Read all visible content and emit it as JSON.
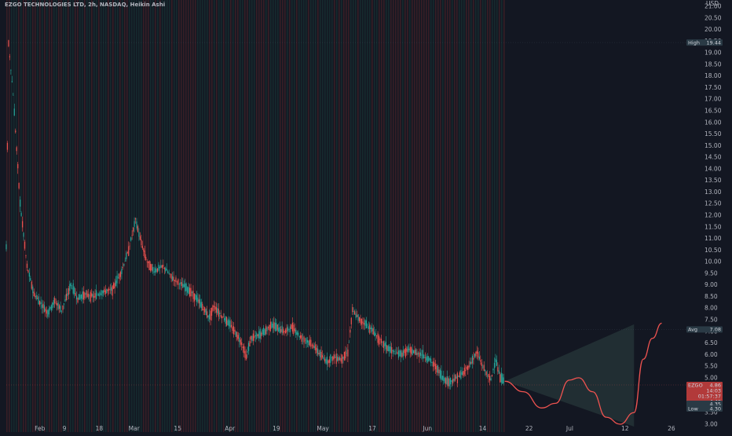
{
  "header": {
    "title": "EZGO TECHNOLOGIES LTD, 2h, NASDAQ, Heikin Ashi"
  },
  "colors": {
    "background": "#131722",
    "up": "#26a69a",
    "down": "#ef5350",
    "stripe_red": "#7a2a2a",
    "stripe_green": "#1e4d46",
    "axis_text": "#b2b5be",
    "projection": "#ef5350",
    "triangle_fill": "#253336"
  },
  "chart_data": {
    "type": "candlestick",
    "title": "EZGO TECHNOLOGIES LTD, 2h, NASDAQ, Heikin Ashi",
    "currency": "USD",
    "y_axis": {
      "ylim": [
        3.0,
        21.0
      ],
      "ticks": [
        "21.00",
        "20.50",
        "20.00",
        "19.50",
        "19.00",
        "18.50",
        "18.00",
        "17.50",
        "17.00",
        "16.50",
        "16.00",
        "15.50",
        "15.00",
        "14.50",
        "14.00",
        "13.50",
        "13.00",
        "12.50",
        "12.00",
        "11.50",
        "11.00",
        "10.50",
        "10.00",
        "9.50",
        "9.00",
        "8.50",
        "8.00",
        "7.50",
        "7.00",
        "6.50",
        "6.00",
        "5.50",
        "5.00",
        "4.50",
        "4.00",
        "3.50",
        "3.00"
      ]
    },
    "x_axis": {
      "ticks": [
        "Feb",
        "9",
        "18",
        "Mar",
        "15",
        "Apr",
        "19",
        "May",
        "17",
        "Jun",
        "14",
        "22",
        "Jul",
        "12",
        "26"
      ]
    },
    "price_path": {
      "description": "Heikin Ashi 2h price path, Feb to end of May",
      "points": [
        [
          0,
          10.6
        ],
        [
          0.5,
          19.4
        ],
        [
          1.5,
          17.2
        ],
        [
          3,
          12.5
        ],
        [
          4.5,
          9.8
        ],
        [
          6,
          8.6
        ],
        [
          7.5,
          8.2
        ],
        [
          9,
          7.8
        ],
        [
          10.5,
          8.3
        ],
        [
          12,
          7.9
        ],
        [
          14,
          9.0
        ],
        [
          15.5,
          8.4
        ],
        [
          17,
          8.6
        ],
        [
          19,
          8.5
        ],
        [
          21,
          8.7
        ],
        [
          23,
          8.8
        ],
        [
          25,
          9.6
        ],
        [
          26.5,
          10.5
        ],
        [
          28,
          11.8
        ],
        [
          29,
          11.0
        ],
        [
          30.5,
          10.0
        ],
        [
          32,
          9.6
        ],
        [
          34,
          9.8
        ],
        [
          36,
          9.3
        ],
        [
          38,
          9.0
        ],
        [
          40,
          8.7
        ],
        [
          42,
          8.2
        ],
        [
          44,
          7.6
        ],
        [
          45,
          8.1
        ],
        [
          46.5,
          7.7
        ],
        [
          48,
          7.4
        ],
        [
          49.5,
          7.0
        ],
        [
          51,
          6.5
        ],
        [
          52,
          5.9
        ],
        [
          53,
          6.7
        ],
        [
          54.5,
          6.8
        ],
        [
          56,
          7.0
        ],
        [
          57.5,
          7.3
        ],
        [
          59,
          7.1
        ],
        [
          60.5,
          7.0
        ],
        [
          62,
          7.2
        ],
        [
          63.5,
          6.8
        ],
        [
          65,
          6.6
        ],
        [
          66.5,
          6.4
        ],
        [
          68,
          6.0
        ],
        [
          69.5,
          5.7
        ],
        [
          71,
          5.9
        ],
        [
          72.5,
          5.8
        ],
        [
          74,
          6.1
        ],
        [
          75,
          7.9
        ],
        [
          76.5,
          7.5
        ],
        [
          78,
          7.3
        ],
        [
          79.5,
          7.0
        ],
        [
          81,
          6.6
        ],
        [
          82.5,
          6.3
        ],
        [
          84,
          6.1
        ],
        [
          85.5,
          6.0
        ],
        [
          87,
          6.2
        ],
        [
          88.5,
          6.1
        ],
        [
          90,
          6.0
        ],
        [
          91.5,
          5.8
        ],
        [
          93,
          5.5
        ],
        [
          94.5,
          5.0
        ],
        [
          96,
          4.8
        ],
        [
          97.5,
          5.0
        ],
        [
          99,
          5.2
        ],
        [
          100.5,
          5.6
        ],
        [
          102,
          6.1
        ],
        [
          103,
          5.6
        ],
        [
          104,
          5.2
        ],
        [
          105,
          4.9
        ],
        [
          106,
          5.8
        ],
        [
          107,
          5.0
        ],
        [
          108,
          4.85
        ]
      ]
    },
    "last_candle_index": 108,
    "projection": {
      "triangle": [
        [
          108,
          4.85
        ],
        [
          136,
          7.3
        ],
        [
          108,
          4.85
        ]
      ],
      "curve": [
        [
          108,
          4.85
        ],
        [
          112,
          4.4
        ],
        [
          116,
          3.7
        ],
        [
          119,
          3.9
        ],
        [
          122,
          4.9
        ],
        [
          124,
          5.0
        ],
        [
          127,
          4.4
        ],
        [
          130,
          3.3
        ],
        [
          133,
          3.0
        ],
        [
          136,
          3.5
        ],
        [
          138,
          5.8
        ],
        [
          140,
          6.7
        ],
        [
          142,
          7.35
        ]
      ]
    },
    "markers": [
      {
        "label": "High",
        "value": "19.44",
        "price": 19.44,
        "color": "#2a3a45"
      },
      {
        "label": "Avg",
        "value": "7.08",
        "price": 7.08,
        "color": "#2a3a45"
      },
      {
        "label": "EZGO",
        "value": "4.86",
        "price": 4.86,
        "color": "#b23a3a"
      },
      {
        "label": "",
        "value": "14:03",
        "price": 4.74,
        "color": "#b23a3a"
      },
      {
        "label": "",
        "value": "01:57:37",
        "price": 4.62,
        "color": "#b23a3a"
      },
      {
        "label": "",
        "value": "4.43",
        "price": 4.43,
        "color": "#b23a3a"
      },
      {
        "label": "",
        "value": "4.35",
        "price": 4.35,
        "color": "#2a3a45"
      },
      {
        "label": "Low",
        "value": "4.30",
        "price": 4.3,
        "color": "#2a3a45"
      }
    ],
    "unit_label": "USD",
    "legend": "none",
    "grid": false
  }
}
